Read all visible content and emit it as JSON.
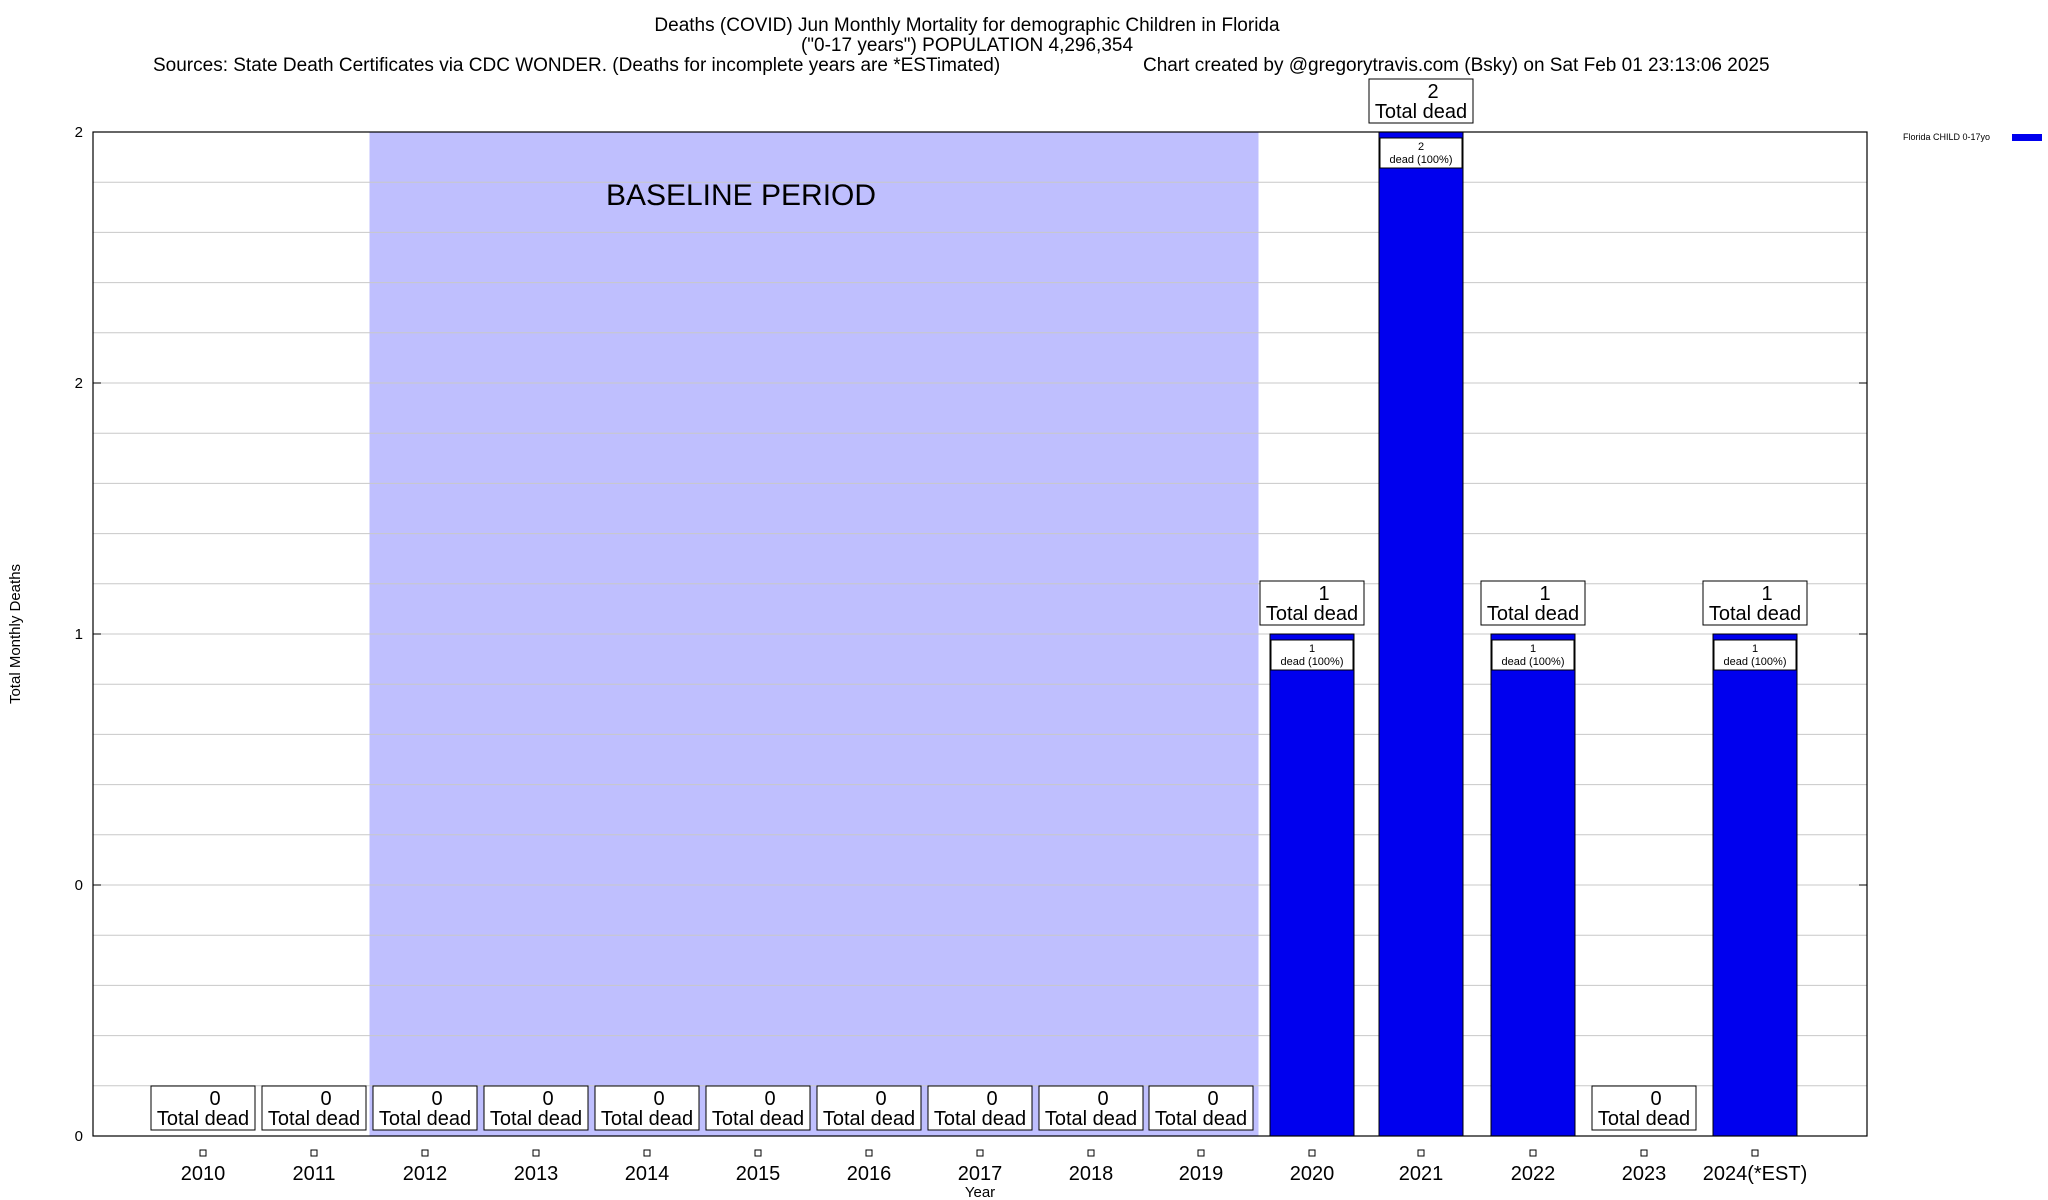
{
  "header": {
    "title_line1": "Deaths (COVID) Jun Monthly Mortality for demographic Children in Florida",
    "title_line2": "(\"0-17 years\") POPULATION 4,296,354",
    "sources": "Sources: State Death Certificates via CDC WONDER. (Deaths for incomplete years are *ESTimated)",
    "credit": "Chart created by @gregorytravis.com (Bsky) on Sat Feb 01 23:13:06 2025"
  },
  "chart_data": {
    "type": "bar",
    "xlabel": "Year",
    "ylabel": "Total Monthly Deaths",
    "categories": [
      "2010",
      "2011",
      "2012",
      "2013",
      "2014",
      "2015",
      "2016",
      "2017",
      "2018",
      "2019",
      "2020",
      "2021",
      "2022",
      "2023",
      "2024(*EST)"
    ],
    "series": [
      {
        "name": "Florida CHILD 0-17yo",
        "color": "#0000ee",
        "values": [
          0,
          0,
          0,
          0,
          0,
          0,
          0,
          0,
          0,
          0,
          1,
          2,
          1,
          0,
          1
        ]
      }
    ],
    "ylim": [
      0,
      2
    ],
    "y_tick_labels": [
      "0",
      "0",
      "1",
      "2",
      "2"
    ],
    "total_label_suffix": "Total dead",
    "segment_label_suffix": "dead (100%)",
    "baseline": {
      "label": "BASELINE PERIOD",
      "from": "2012",
      "to": "2019",
      "color": "#bfbffe"
    },
    "legend_position": "top-right",
    "grid": true
  }
}
